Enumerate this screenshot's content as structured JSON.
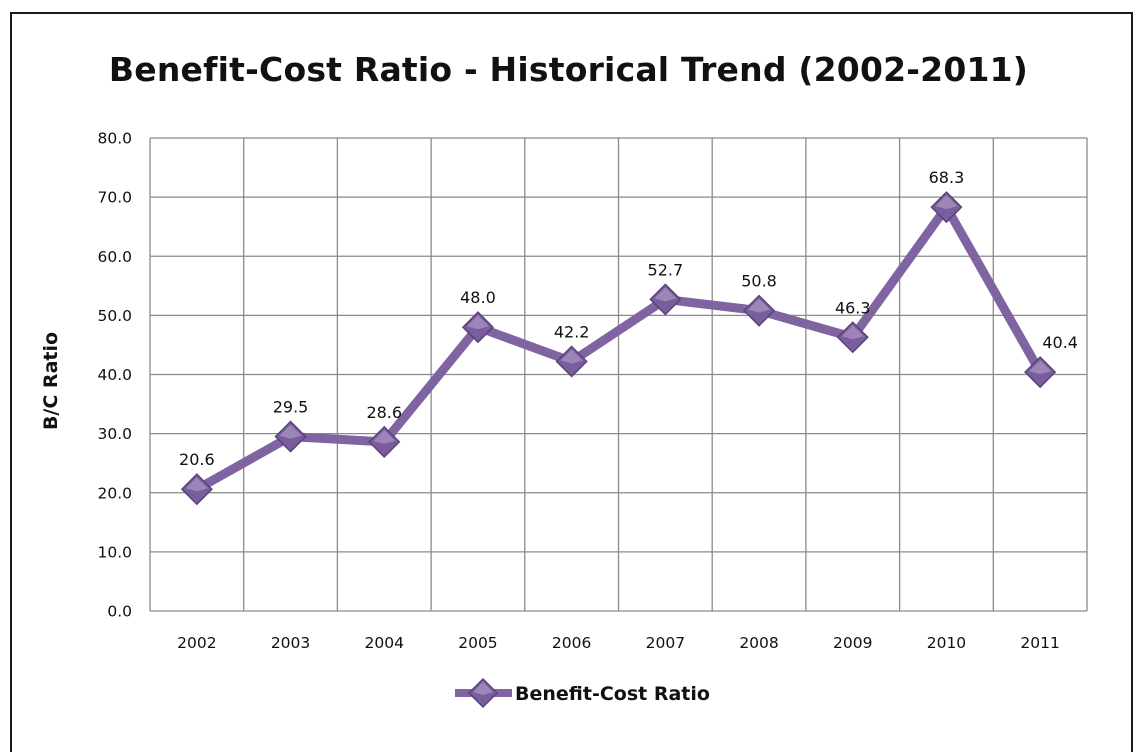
{
  "chart_data": {
    "type": "line",
    "title": "Benefit-Cost Ratio - Historical Trend (2002-2011)",
    "xlabel": "",
    "ylabel": "B/C Ratio",
    "categories": [
      "2002",
      "2003",
      "2004",
      "2005",
      "2006",
      "2007",
      "2008",
      "2009",
      "2010",
      "2011"
    ],
    "series": [
      {
        "name": "Benefit-Cost Ratio",
        "values": [
          20.6,
          29.5,
          28.6,
          48.0,
          42.2,
          52.7,
          50.8,
          46.3,
          68.3,
          40.4
        ],
        "color": "#8064A2"
      }
    ],
    "data_labels": [
      "20.6",
      "29.5",
      "28.6",
      "48.0",
      "42.2",
      "52.7",
      "50.8",
      "46.3",
      "68.3",
      "40.4"
    ],
    "y_ticks": [
      "0.0",
      "10.0",
      "20.0",
      "30.0",
      "40.0",
      "50.0",
      "60.0",
      "70.0",
      "80.0"
    ],
    "ylim": [
      0,
      80
    ],
    "grid": true,
    "legend_position": "bottom",
    "marker": "diamond"
  }
}
